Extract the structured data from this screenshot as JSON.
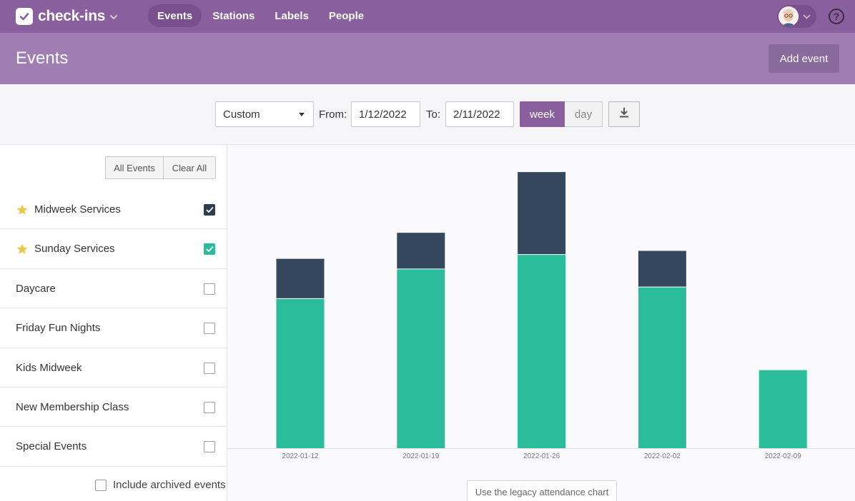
{
  "app": {
    "brand": "check-ins",
    "nav": [
      {
        "label": "Events",
        "active": true
      },
      {
        "label": "Stations",
        "active": false
      },
      {
        "label": "Labels",
        "active": false
      },
      {
        "label": "People",
        "active": false
      }
    ],
    "help_label": "?"
  },
  "header": {
    "title": "Events",
    "add_event_label": "Add event"
  },
  "filters": {
    "range_select": "Custom",
    "from_label": "From:",
    "from_value": "1/12/2022",
    "to_label": "To:",
    "to_value": "2/11/2022",
    "week_label": "week",
    "day_label": "day",
    "download_icon": "download-icon"
  },
  "sidebar": {
    "all_events_label": "All Events",
    "clear_all_label": "Clear All",
    "events": [
      {
        "name": "Midweek Services",
        "starred": true,
        "checked": true,
        "check_color": "#2e3c4f"
      },
      {
        "name": "Sunday Services",
        "starred": true,
        "checked": true,
        "check_color": "#2bbd9b"
      },
      {
        "name": "Daycare",
        "starred": false,
        "checked": false
      },
      {
        "name": "Friday Fun Nights",
        "starred": false,
        "checked": false
      },
      {
        "name": "Kids Midweek",
        "starred": false,
        "checked": false
      },
      {
        "name": "New Membership Class",
        "starred": false,
        "checked": false
      },
      {
        "name": "Special Events",
        "starred": false,
        "checked": false
      }
    ],
    "include_archived_label": "Include archived events"
  },
  "legacy_chart_label": "Use the legacy attendance chart",
  "colors": {
    "nav_bg": "#8a5f9e",
    "header_bg": "#a07db3",
    "midweek": "#34475c",
    "sunday": "#2bbd9b"
  },
  "chart_data": {
    "type": "bar",
    "stacked": true,
    "categories": [
      "2022-01-12",
      "2022-01-19",
      "2022-01-26",
      "2022-02-02",
      "2022-02-09"
    ],
    "series": [
      {
        "name": "Sunday Services",
        "color": "#2bbd9b",
        "values": [
          207,
          248,
          268,
          223,
          108
        ]
      },
      {
        "name": "Midweek Services",
        "color": "#34475c",
        "values": [
          55,
          50,
          114,
          50,
          0
        ]
      }
    ],
    "ylim": [
      0,
      390
    ],
    "grid": false
  }
}
